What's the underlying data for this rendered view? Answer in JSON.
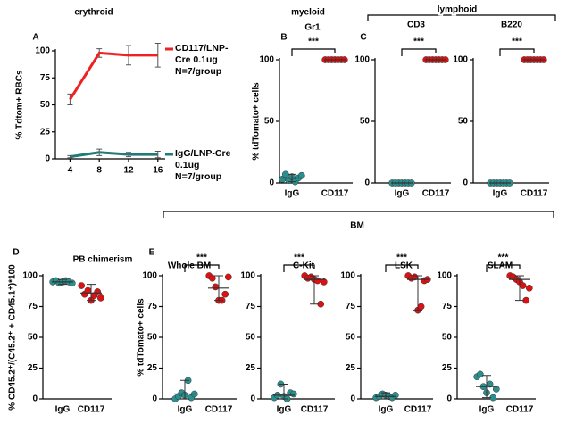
{
  "chart_data": [
    {
      "type": "line",
      "panel": "A",
      "title": "erythroid",
      "ylabel": "% Tdtom+ RBCs",
      "x": [
        4,
        8,
        12,
        16
      ],
      "xlim": [
        2,
        17
      ],
      "xticks": [
        4,
        8,
        12,
        16
      ],
      "ylim": [
        0,
        100
      ],
      "yticks": [
        0,
        25,
        50,
        75,
        100
      ],
      "series": [
        {
          "name": "CD117/LNP-Cre 0.1ug N=7/group",
          "color": "#ee2222",
          "values": [
            55,
            98,
            96,
            96
          ],
          "errors": [
            5,
            4,
            9,
            11
          ]
        },
        {
          "name": "IgG/LNP-Cre 0.1ug N=7/group",
          "color": "#237a7a",
          "values": [
            2,
            6,
            4,
            4
          ],
          "errors": [
            1,
            3,
            2,
            3
          ]
        }
      ]
    },
    {
      "type": "dot",
      "panel": "B",
      "title": "Gr1",
      "ylabel": "% tdTomato+ cells",
      "annotation": "***",
      "categories": [
        "IgG",
        "CD117"
      ],
      "ylim": [
        0,
        100
      ],
      "yticks": [
        0,
        50,
        100
      ],
      "groups": [
        {
          "color": "#2a8f8f",
          "values": [
            3,
            7,
            2,
            5,
            1,
            4,
            6
          ],
          "center": 4,
          "whiskers": [
            1,
            7
          ]
        },
        {
          "color": "#dd1111",
          "values": [
            100,
            100,
            100,
            100,
            100,
            100,
            100
          ],
          "center": 100,
          "whiskers": [
            100,
            100
          ]
        }
      ]
    },
    {
      "type": "dot",
      "panel": "C",
      "title": "CD3",
      "annotation": "***",
      "categories": [
        "IgG",
        "CD117"
      ],
      "ylim": [
        0,
        100
      ],
      "yticks": [
        0,
        50,
        100
      ],
      "groups": [
        {
          "color": "#2a8f8f",
          "values": [
            0,
            0,
            0,
            0,
            0,
            0,
            0
          ],
          "center": 0,
          "whiskers": [
            0,
            0
          ]
        },
        {
          "color": "#dd1111",
          "values": [
            100,
            100,
            100,
            100,
            100,
            100,
            100
          ],
          "center": 100,
          "whiskers": [
            100,
            100
          ]
        }
      ]
    },
    {
      "type": "dot",
      "title": "B220",
      "annotation": "***",
      "categories": [
        "IgG",
        "CD117"
      ],
      "ylim": [
        0,
        100
      ],
      "yticks": [
        0,
        50,
        100
      ],
      "groups": [
        {
          "color": "#2a8f8f",
          "values": [
            0,
            0,
            0,
            0,
            0,
            0,
            0
          ],
          "center": 0,
          "whiskers": [
            0,
            0
          ]
        },
        {
          "color": "#dd1111",
          "values": [
            100,
            100,
            100,
            100,
            100,
            100,
            100
          ],
          "center": 100,
          "whiskers": [
            100,
            100
          ]
        }
      ]
    },
    {
      "type": "dot",
      "panel": "D",
      "title": "PB chimerism",
      "ylabel": "% CD45.2⁺/(C45.2⁺ + CD45.1⁺)*100",
      "categories": [
        "IgG",
        "CD117"
      ],
      "ylim": [
        0,
        100
      ],
      "yticks": [
        0,
        25,
        50,
        75,
        100
      ],
      "groups": [
        {
          "color": "#2a8f8f",
          "values": [
            95,
            96,
            94,
            95,
            96,
            95,
            94
          ],
          "center": 95,
          "whiskers": [
            93,
            97
          ]
        },
        {
          "color": "#dd1111",
          "values": [
            92,
            85,
            88,
            80,
            84,
            87,
            82
          ],
          "center": 86,
          "whiskers": [
            80,
            93
          ]
        }
      ]
    },
    {
      "type": "dot",
      "panel": "E",
      "title": "Whole BM",
      "ylabel": "% tdTomato+ cells",
      "annotation": "***",
      "categories": [
        "IgG",
        "CD117"
      ],
      "ylim": [
        0,
        100
      ],
      "yticks": [
        0,
        25,
        50,
        75,
        100
      ],
      "groups": [
        {
          "color": "#2a8f8f",
          "values": [
            0,
            2,
            5,
            3,
            15,
            1,
            4
          ],
          "center": 4,
          "whiskers": [
            0,
            15
          ]
        },
        {
          "color": "#dd1111",
          "values": [
            100,
            98,
            91,
            80,
            80,
            85,
            99
          ],
          "center": 90,
          "whiskers": [
            80,
            100
          ]
        }
      ]
    },
    {
      "type": "dot",
      "title": "C-Kit",
      "annotation": "***",
      "categories": [
        "IgG",
        "CD117"
      ],
      "ylim": [
        0,
        100
      ],
      "yticks": [
        0,
        25,
        50,
        75,
        100
      ],
      "groups": [
        {
          "color": "#2a8f8f",
          "values": [
            1,
            3,
            12,
            2,
            0,
            5,
            4
          ],
          "center": 3,
          "whiskers": [
            0,
            12
          ]
        },
        {
          "color": "#dd1111",
          "values": [
            100,
            98,
            99,
            97,
            96,
            77,
            95
          ],
          "center": 97,
          "whiskers": [
            77,
            100
          ]
        }
      ]
    },
    {
      "type": "dot",
      "title": "LSK",
      "annotation": "***",
      "categories": [
        "IgG",
        "CD117"
      ],
      "ylim": [
        0,
        100
      ],
      "yticks": [
        0,
        25,
        50,
        75,
        100
      ],
      "groups": [
        {
          "color": "#2a8f8f",
          "values": [
            1,
            2,
            4,
            3,
            2,
            1,
            3
          ],
          "center": 2,
          "whiskers": [
            0,
            5
          ]
        },
        {
          "color": "#dd1111",
          "values": [
            100,
            98,
            99,
            72,
            75,
            96,
            97
          ],
          "center": 97,
          "whiskers": [
            72,
            100
          ]
        }
      ]
    },
    {
      "type": "dot",
      "title": "SLAM",
      "annotation": "***",
      "categories": [
        "IgG",
        "CD117"
      ],
      "ylim": [
        0,
        100
      ],
      "yticks": [
        0,
        25,
        50,
        75,
        100
      ],
      "groups": [
        {
          "color": "#2a8f8f",
          "values": [
            18,
            20,
            10,
            5,
            12,
            1,
            8
          ],
          "center": 10,
          "whiskers": [
            1,
            19
          ]
        },
        {
          "color": "#dd1111",
          "values": [
            100,
            99,
            97,
            95,
            92,
            80,
            90
          ],
          "center": 97,
          "whiskers": [
            80,
            100
          ]
        }
      ]
    }
  ],
  "figure": {
    "groups": [
      {
        "label": "myeloid"
      },
      {
        "label": "lymphoid"
      },
      {
        "label": "BM"
      }
    ]
  }
}
